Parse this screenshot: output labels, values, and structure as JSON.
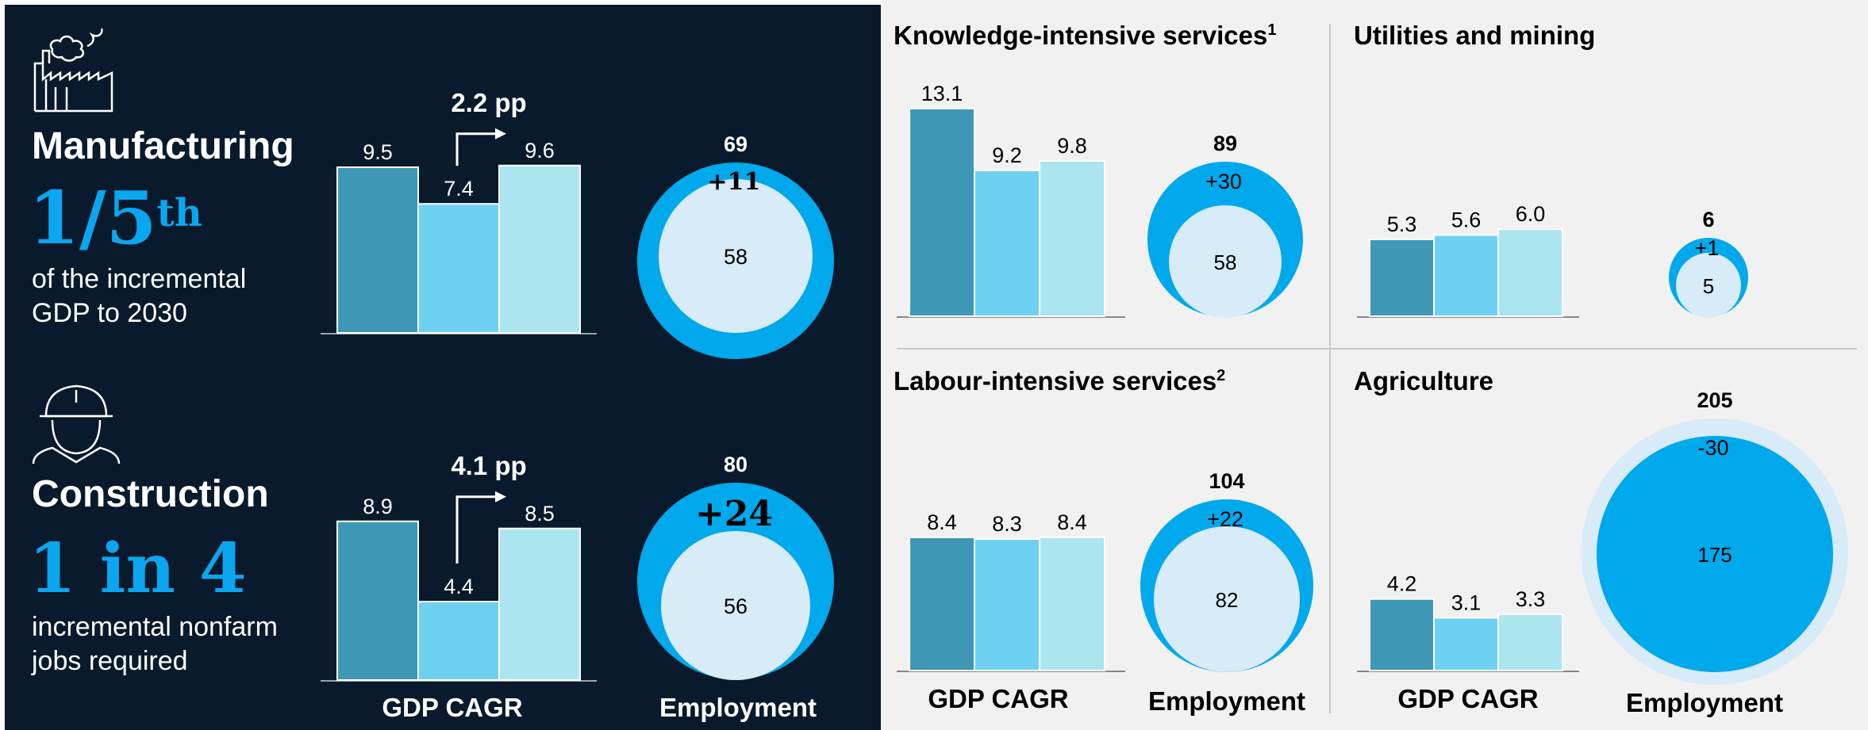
{
  "colors": {
    "bar1": "#3f97b6",
    "bar2": "#6fd1f1",
    "bar3": "#abe6f0",
    "outer": "#00a8ec",
    "inner": "#d7ebf8",
    "agri_outer": "#d7ebf8",
    "agri_inner": "#00a8ec",
    "dark_bg": "#081a2b",
    "accent_text": "#0aa6f0"
  },
  "icons": {
    "manufacturing": "factory-icon",
    "construction": "worker-helmet-icon"
  },
  "manufacturing": {
    "title": "Manufacturing",
    "big_stat": "1/5",
    "big_stat_sup": "th",
    "description": "of the incremental GDP to 2030",
    "pp_label": "2.2 pp"
  },
  "construction": {
    "title": "Construction",
    "big_stat": "1 in 4",
    "description": "incremental nonfarm jobs required",
    "pp_label": "4.1 pp"
  },
  "sections": {
    "knowledge": {
      "title": "Knowledge-intensive services",
      "sup": "1"
    },
    "utilities": {
      "title": "Utilities and mining",
      "sup": ""
    },
    "labour": {
      "title": "Labour-intensive services",
      "sup": "2"
    },
    "agriculture": {
      "title": "Agriculture",
      "sup": ""
    }
  },
  "axis_labels": {
    "gdp": "GDP CAGR",
    "employment": "Employment"
  },
  "chart_data": [
    {
      "id": "manufacturing",
      "type": "bar",
      "values": [
        9.5,
        7.4,
        9.6
      ],
      "labels": [
        "9.5",
        "7.4",
        "9.6"
      ],
      "ylabel": "GDP CAGR",
      "employment": {
        "total": "69",
        "change": "+11",
        "base": "58"
      }
    },
    {
      "id": "construction",
      "type": "bar",
      "values": [
        8.9,
        4.4,
        8.5
      ],
      "labels": [
        "8.9",
        "4.4",
        "8.5"
      ],
      "ylabel": "GDP CAGR",
      "employment": {
        "total": "80",
        "change": "+24",
        "base": "56"
      }
    },
    {
      "id": "knowledge",
      "type": "bar",
      "values": [
        13.1,
        9.2,
        9.8
      ],
      "labels": [
        "13.1",
        "9.2",
        "9.8"
      ],
      "ylabel": "GDP CAGR",
      "employment": {
        "total": "89",
        "change": "+30",
        "base": "58"
      }
    },
    {
      "id": "utilities",
      "type": "bar",
      "values": [
        5.3,
        5.6,
        6.0
      ],
      "labels": [
        "5.3",
        "5.6",
        "6.0"
      ],
      "ylabel": "GDP CAGR",
      "employment": {
        "total": "6",
        "change": "+1",
        "base": "5"
      }
    },
    {
      "id": "labour",
      "type": "bar",
      "values": [
        8.4,
        8.3,
        8.4
      ],
      "labels": [
        "8.4",
        "8.3",
        "8.4"
      ],
      "ylabel": "GDP CAGR",
      "employment": {
        "total": "104",
        "change": "+22",
        "base": "82"
      }
    },
    {
      "id": "agriculture",
      "type": "bar",
      "values": [
        4.2,
        3.1,
        3.3
      ],
      "labels": [
        "4.2",
        "3.1",
        "3.3"
      ],
      "ylabel": "GDP CAGR",
      "employment": {
        "total": "205",
        "change": "-30",
        "base": "175"
      }
    }
  ]
}
